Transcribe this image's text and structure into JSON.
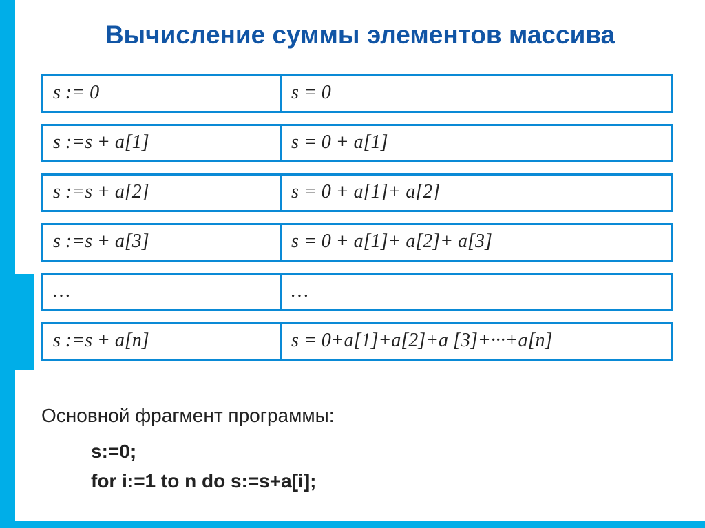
{
  "title": "Вычисление суммы элементов массива",
  "rows": [
    {
      "left": "s := 0",
      "right": "s = 0"
    },
    {
      "left": "s :=s + a[1]",
      "right": "s = 0 + a[1]"
    },
    {
      "left": "s :=s + a[2]",
      "right": "s = 0 + a[1]+ a[2]"
    },
    {
      "left": "s :=s + a[3]",
      "right": "s = 0 + a[1]+ a[2]+ a[3]"
    },
    {
      "left": "…",
      "right": "…"
    },
    {
      "left": "s :=s + a[n]",
      "right": "s = 0+a[1]+a[2]+a [3]+···+a[n]"
    }
  ],
  "footer_text": "Основной фрагмент программы:",
  "code_lines": [
    "s:=0;",
    "for i:=1 to n do s:=s+a[i];"
  ],
  "colors": {
    "accent": "#00aee8",
    "border": "#0a8ad6",
    "title": "#1155a5",
    "text": "#222222",
    "background": "#ffffff"
  }
}
